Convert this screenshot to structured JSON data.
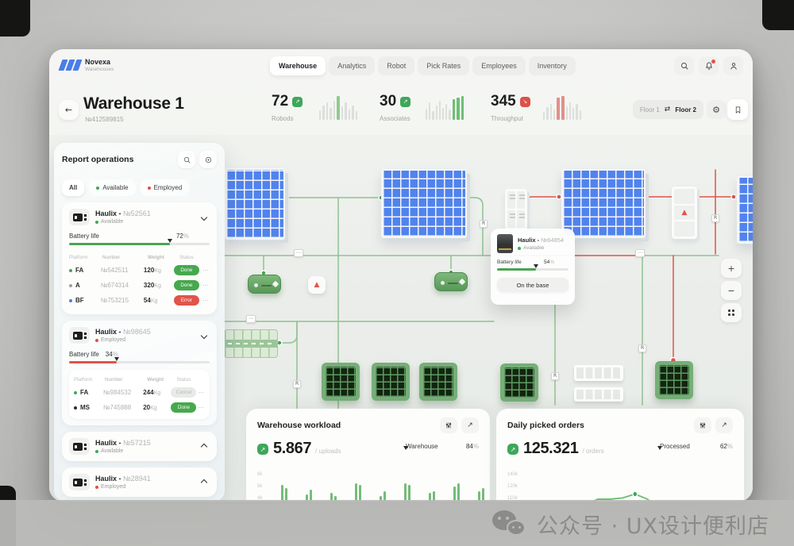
{
  "watermark": {
    "text": "公众号 · UX设计便利店"
  },
  "brand": {
    "name": "Novexa",
    "subtitle": "Warehouses"
  },
  "colors": {
    "accent_green": "#3ea75a",
    "accent_red": "#dd5147",
    "rack_blue": "#5183ee"
  },
  "nav": {
    "tabs": [
      {
        "label": "Warehouse",
        "active": true
      },
      {
        "label": "Analytics",
        "active": false
      },
      {
        "label": "Robot",
        "active": false
      },
      {
        "label": "Pick Rates",
        "active": false
      },
      {
        "label": "Employees",
        "active": false
      },
      {
        "label": "Inventory",
        "active": false
      }
    ]
  },
  "page": {
    "title": "Warehouse 1",
    "number": "№412589815",
    "stats": [
      {
        "value": "72",
        "label": "Robods",
        "trend": "↗",
        "badge_color": "#3ea75a",
        "spark": {
          "bars": [
            12,
            18,
            22,
            15,
            24,
            30,
            17,
            22,
            13,
            18,
            11
          ],
          "highlight": [
            5
          ],
          "highlight_color": "#8fcb92"
        }
      },
      {
        "value": "30",
        "label": "Associates",
        "trend": "↗",
        "badge_color": "#3ea75a",
        "spark": {
          "bars": [
            14,
            22,
            11,
            18,
            24,
            15,
            20,
            13,
            26,
            28,
            30
          ],
          "highlight": [
            8,
            9,
            10
          ],
          "highlight_color": "#6fbe74"
        }
      },
      {
        "value": "345",
        "label": "Throughput",
        "trend": "↘",
        "badge_color": "#dd5147",
        "spark": {
          "bars": [
            10,
            16,
            20,
            13,
            28,
            30,
            17,
            22,
            15,
            20,
            12
          ],
          "highlight": [
            4,
            5
          ],
          "highlight_color": "#e2908a"
        }
      }
    ],
    "floor_switch": {
      "left": "Floor 1",
      "swap": "⇄",
      "right": "Floor 2"
    }
  },
  "sidebar": {
    "title": "Report operations",
    "filters": [
      {
        "label": "All",
        "dot": null
      },
      {
        "label": "Available",
        "dot": "#3ea75a"
      },
      {
        "label": "Employed",
        "dot": "#dd5147"
      }
    ],
    "table_headers": [
      "Platform",
      "Number",
      "Weight",
      "Status"
    ],
    "robots": [
      {
        "name": "Haulix -",
        "num": "№52561",
        "status": "Available",
        "status_dot": "#3ea75a",
        "battery_label": "Battery life",
        "battery": 72,
        "battery_suffix": "%",
        "rows": [
          {
            "dot": "#3ea75a",
            "platform": "FA",
            "number": "№542511",
            "weight": "120",
            "unit": "Kg",
            "status": "Done",
            "menu": "⋯"
          },
          {
            "dot": "#9aa09a",
            "platform": "A",
            "number": "№674314",
            "weight": "320",
            "unit": "Kg",
            "status": "Done",
            "menu": "⋯"
          },
          {
            "dot": "#4a7de8",
            "platform": "BF",
            "number": "№753215",
            "weight": "54",
            "unit": "Kg",
            "status": "Error",
            "menu": "⋯"
          }
        ]
      },
      {
        "name": "Haulix -",
        "num": "№98645",
        "status": "Employed",
        "status_dot": "#dd5147",
        "battery_label": "Battery life",
        "battery": 34,
        "battery_suffix": "%",
        "rows": [
          {
            "dot": "#3ea75a",
            "platform": "FA",
            "number": "№984532",
            "weight": "244",
            "unit": "Kg",
            "status": "Cancel",
            "menu": "⋯"
          },
          {
            "dot": "#2b2b2b",
            "platform": "MS",
            "number": "№745888",
            "weight": "20",
            "unit": "Kg",
            "status": "Done",
            "menu": "⋯"
          }
        ]
      },
      {
        "name": "Haulix -",
        "num": "№57215",
        "status": "Available",
        "status_dot": "#3ea75a"
      },
      {
        "name": "Haulix -",
        "num": "№28941",
        "status": "Employed",
        "status_dot": "#dd5147"
      }
    ]
  },
  "map": {
    "tooltip": {
      "name": "Haulix -",
      "num": "№64854",
      "status": "Available",
      "battery_label": "Battery life",
      "battery": 54,
      "battery_suffix": "%",
      "button": "On the base"
    },
    "tags": [
      {
        "label": "⋯"
      },
      {
        "label": "R"
      },
      {
        "label": "R"
      },
      {
        "label": "⋯"
      },
      {
        "label": "⋯"
      },
      {
        "label": "R"
      },
      {
        "label": "R"
      },
      {
        "label": "R"
      }
    ],
    "controls": {
      "zoom_in": "+",
      "zoom_out": "−"
    }
  },
  "cards": [
    {
      "title": "Warehouse workload",
      "value": "5.867",
      "unit": "/ uploads",
      "trend": "↗",
      "metric": {
        "label": "Warehouse",
        "value": 84,
        "suffix": "%"
      }
    },
    {
      "title": "Daily picked orders",
      "value": "125.321",
      "unit": "/ orders",
      "trend": "↗",
      "metric": {
        "label": "Processed",
        "value": 62,
        "suffix": "%"
      }
    }
  ],
  "chart_data": [
    {
      "type": "bar",
      "title": "Warehouse workload",
      "ylabels": [
        "6k",
        "5k",
        "4k"
      ],
      "ylim": [
        0,
        6000
      ],
      "x": "days",
      "groups": [
        {
          "grey": [
            26,
            16
          ],
          "green": [
            50,
            46
          ]
        },
        {
          "grey": [
            18,
            26
          ],
          "green": [
            38,
            44
          ]
        },
        {
          "grey": [
            22,
            14
          ],
          "green": [
            40,
            36
          ]
        },
        {
          "grey": [
            18,
            24
          ],
          "green": [
            52,
            50
          ]
        },
        {
          "grey": [
            20,
            14
          ],
          "green": [
            36,
            42
          ]
        },
        {
          "grey": [
            22,
            18
          ],
          "green": [
            52,
            50
          ]
        },
        {
          "grey": [
            14,
            20
          ],
          "green": [
            40,
            42
          ]
        },
        {
          "grey": [
            18,
            24
          ],
          "green": [
            48,
            52
          ]
        },
        {
          "grey": [
            16,
            12
          ],
          "green": [
            42,
            46
          ]
        }
      ]
    },
    {
      "type": "line",
      "title": "Daily picked orders",
      "ylabels": [
        "140k",
        "120k",
        "110k"
      ],
      "ymin": 100,
      "ymax": 142,
      "marker_index": 9,
      "values": [
        108,
        107,
        109,
        110,
        112,
        117,
        121,
        121,
        122,
        125,
        121,
        113,
        108,
        108,
        111,
        110,
        117,
        111
      ]
    }
  ]
}
